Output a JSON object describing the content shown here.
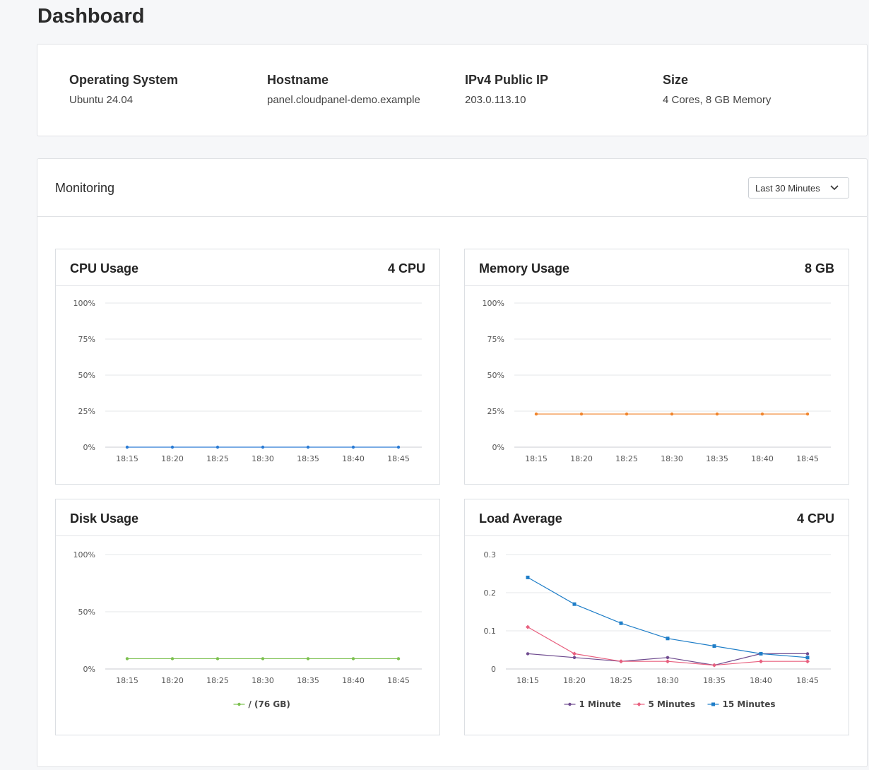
{
  "page": {
    "title": "Dashboard"
  },
  "server_info": [
    {
      "label": "Operating System",
      "value": "Ubuntu 24.04"
    },
    {
      "label": "Hostname",
      "value": "panel.cloudpanel-demo.example"
    },
    {
      "label": "IPv4 Public IP",
      "value": "203.0.113.10"
    },
    {
      "label": "Size",
      "value": "4 Cores, 8 GB Memory"
    }
  ],
  "monitoring": {
    "title": "Monitoring",
    "range_selected": "Last 30 Minutes",
    "chevron_icon": "chevron-down-icon"
  },
  "cards": {
    "cpu": {
      "title": "CPU Usage",
      "badge": "4 CPU"
    },
    "memory": {
      "title": "Memory Usage",
      "badge": "8 GB"
    },
    "disk": {
      "title": "Disk Usage",
      "badge": ""
    },
    "load": {
      "title": "Load Average",
      "badge": "4 CPU"
    }
  },
  "chart_data": [
    {
      "id": "cpu",
      "type": "line",
      "title": "CPU Usage",
      "categories": [
        "18:15",
        "18:20",
        "18:25",
        "18:30",
        "18:35",
        "18:40",
        "18:45"
      ],
      "y_ticks": [
        "100%",
        "75%",
        "50%",
        "25%",
        "0%"
      ],
      "ylim": [
        0,
        100
      ],
      "grid": true,
      "legend": "none",
      "series": [
        {
          "values": [
            0,
            0,
            0,
            0,
            0,
            0,
            0
          ],
          "color": "#2a7bd4",
          "marker": "circle"
        }
      ]
    },
    {
      "id": "memory",
      "type": "line",
      "title": "Memory Usage",
      "categories": [
        "18:15",
        "18:20",
        "18:25",
        "18:30",
        "18:35",
        "18:40",
        "18:45"
      ],
      "y_ticks": [
        "100%",
        "75%",
        "50%",
        "25%",
        "0%"
      ],
      "ylim": [
        0,
        100
      ],
      "grid": true,
      "legend": "none",
      "series": [
        {
          "values": [
            23,
            23,
            23,
            23,
            23,
            23,
            23
          ],
          "color": "#f0852d",
          "marker": "circle"
        }
      ]
    },
    {
      "id": "disk",
      "type": "line",
      "title": "Disk Usage",
      "categories": [
        "18:15",
        "18:20",
        "18:25",
        "18:30",
        "18:35",
        "18:40",
        "18:45"
      ],
      "y_ticks": [
        "100%",
        "50%",
        "0%"
      ],
      "ylim": [
        0,
        100
      ],
      "grid": true,
      "legend": "bottom",
      "series": [
        {
          "name": "/ (76 GB)",
          "values": [
            9,
            9,
            9,
            9,
            9,
            9,
            9
          ],
          "color": "#7cc04f",
          "marker": "circle"
        }
      ]
    },
    {
      "id": "load",
      "type": "line",
      "title": "Load Average",
      "categories": [
        "18:15",
        "18:20",
        "18:25",
        "18:30",
        "18:35",
        "18:40",
        "18:45"
      ],
      "y_ticks": [
        "0.3",
        "0.2",
        "0.1",
        "0"
      ],
      "ylim": [
        0,
        0.3
      ],
      "grid": true,
      "legend": "bottom",
      "series": [
        {
          "name": "1 Minute",
          "values": [
            0.04,
            0.03,
            0.02,
            0.03,
            0.01,
            0.04,
            0.04
          ],
          "color": "#6f4b8f",
          "marker": "circle"
        },
        {
          "name": "5 Minutes",
          "values": [
            0.11,
            0.04,
            0.02,
            0.02,
            0.01,
            0.02,
            0.02
          ],
          "color": "#e8607f",
          "marker": "diamond"
        },
        {
          "name": "15 Minutes",
          "values": [
            0.24,
            0.17,
            0.12,
            0.08,
            0.06,
            0.04,
            0.03
          ],
          "color": "#1f7ec8",
          "marker": "square"
        }
      ]
    }
  ]
}
